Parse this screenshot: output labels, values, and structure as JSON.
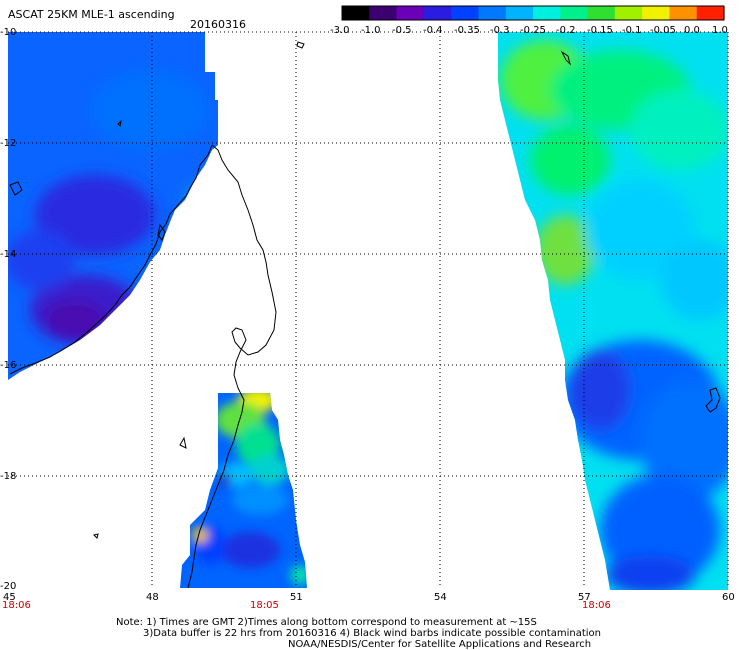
{
  "header": {
    "title": "ASCAT 25KM MLE-1 ascending",
    "date": "20160316"
  },
  "colorbar": {
    "labels": [
      "-3.0",
      "-1.0",
      "-0.5",
      "-0.4",
      "-0.35",
      "-0.3",
      "-0.25",
      "-0.2",
      "-0.15",
      "-0.1",
      "-0.05",
      "0.0",
      "1.0"
    ],
    "colors": [
      "#000000",
      "#3d0070",
      "#6a00b8",
      "#2a1ce0",
      "#0040ff",
      "#0078ff",
      "#00b4ff",
      "#00f0e0",
      "#00f08c",
      "#30e030",
      "#a0f000",
      "#f0f000",
      "#ff9000",
      "#ff2000"
    ]
  },
  "map": {
    "lat_labels": [
      "-10",
      "-12",
      "-14",
      "-16",
      "-18",
      "-20"
    ],
    "lon_labels": [
      "45",
      "48",
      "51",
      "54",
      "57",
      "60"
    ],
    "time_labels": [
      "18:06",
      "18:05",
      "18:06"
    ]
  },
  "footer": {
    "line1": "Note: 1) Times are GMT 2)Times along bottom correspond to measurement at ~15S",
    "line2": "3)Data buffer is 22 hrs from 20160316 4) Black wind barbs indicate possible contamination",
    "line3": "NOAA/NESDIS/Center for Satellite Applications and Research"
  }
}
